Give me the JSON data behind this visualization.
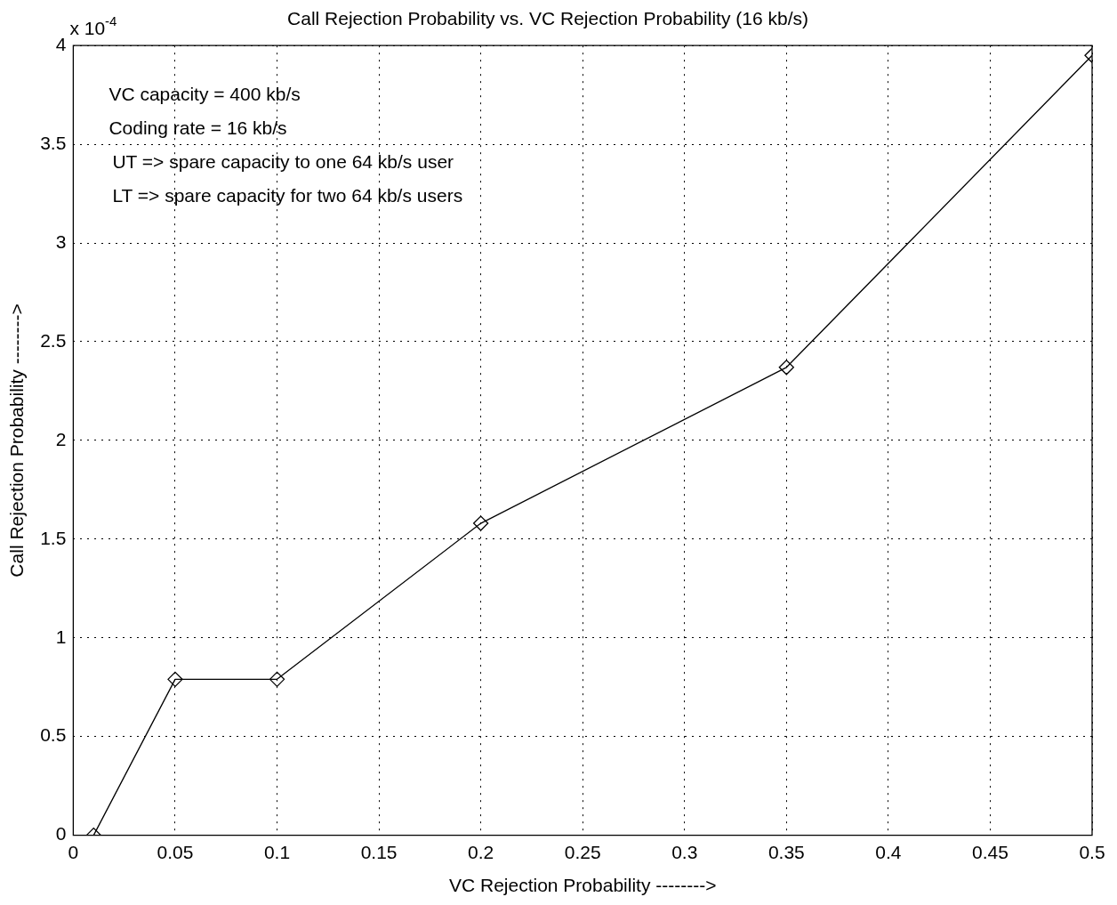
{
  "chart_data": {
    "type": "line",
    "title": "Call Rejection Probability vs. VC Rejection Probability (16 kb/s)",
    "xlabel": "VC Rejection Probability -------->",
    "ylabel": "Call Rejection Probability -------->",
    "x": [
      0.01,
      0.05,
      0.1,
      0.2,
      0.35,
      0.5
    ],
    "series": [
      {
        "color": "#000000",
        "values": [
          0,
          0.79,
          0.79,
          1.58,
          2.37,
          3.95
        ]
      }
    ],
    "xlim": [
      0,
      0.5
    ],
    "xticks": [
      0,
      0.05,
      0.1,
      0.15,
      0.2,
      0.25,
      0.3,
      0.35,
      0.4,
      0.45,
      0.5
    ],
    "ylim": [
      0,
      4
    ],
    "yticks": [
      0,
      0.5,
      1,
      1.5,
      2,
      2.5,
      3,
      3.5,
      4
    ],
    "annotations": [
      "x 10$^{-4}$",
      "VC capacity = 400 kb/s",
      "Coding rate = 16 kb/s",
      "UT => spare capacity to one 64 kb/s user",
      "LT => spare capacity for two 64 kb/s users"
    ],
    "grid": true,
    "legend": false,
    "marker": "diamond",
    "line_style": "solid"
  }
}
